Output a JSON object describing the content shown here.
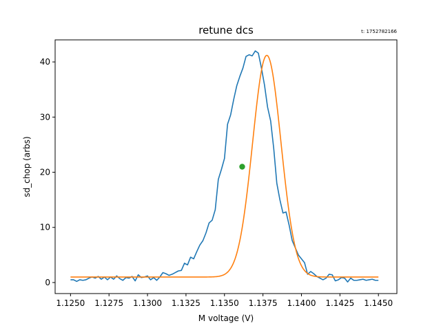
{
  "chart_data": {
    "type": "line",
    "title": "retune dcs",
    "timestamp": "t: 1752782166",
    "xlabel": "M voltage (V)",
    "ylabel": "sd_chop (arbs)",
    "xlim": [
      1.124,
      1.1462
    ],
    "ylim": [
      -2,
      44
    ],
    "xticks": [
      1.125,
      1.1275,
      1.13,
      1.1325,
      1.135,
      1.1375,
      1.14,
      1.1425,
      1.145
    ],
    "xtick_labels": [
      "1.1250",
      "1.1275",
      "1.1300",
      "1.1325",
      "1.1350",
      "1.1375",
      "1.1400",
      "1.1425",
      "1.1450"
    ],
    "yticks": [
      0,
      10,
      20,
      30,
      40
    ],
    "ytick_labels": [
      "0",
      "10",
      "20",
      "30",
      "40"
    ],
    "grid": false,
    "series": [
      {
        "kind": "measured",
        "color": "#1f77b4",
        "x": [
          1.125,
          1.1252,
          1.1254,
          1.1256,
          1.1258,
          1.126,
          1.1262,
          1.1264,
          1.1266,
          1.1268,
          1.127,
          1.1272,
          1.1274,
          1.1276,
          1.1278,
          1.128,
          1.1282,
          1.1284,
          1.1286,
          1.1288,
          1.129,
          1.1292,
          1.1294,
          1.1296,
          1.1298,
          1.13,
          1.1302,
          1.1304,
          1.1306,
          1.1308,
          1.131,
          1.1312,
          1.1314,
          1.1316,
          1.1318,
          1.132,
          1.1322,
          1.1324,
          1.1326,
          1.1328,
          1.133,
          1.1332,
          1.1334,
          1.1336,
          1.1338,
          1.134,
          1.1342,
          1.1344,
          1.1346,
          1.1348,
          1.135,
          1.1352,
          1.1354,
          1.1356,
          1.1358,
          1.136,
          1.1362,
          1.1364,
          1.1366,
          1.1368,
          1.137,
          1.1372,
          1.1374,
          1.1376,
          1.1378,
          1.138,
          1.1382,
          1.1384,
          1.1386,
          1.1388,
          1.139,
          1.1392,
          1.1394,
          1.1396,
          1.1398,
          1.14,
          1.1402,
          1.1404,
          1.1406,
          1.1408,
          1.141,
          1.1412,
          1.1414,
          1.1416,
          1.1418,
          1.142,
          1.1422,
          1.1424,
          1.1426,
          1.1428,
          1.143,
          1.1432,
          1.1434,
          1.1436,
          1.1438,
          1.144,
          1.1442,
          1.1444,
          1.1446,
          1.1448,
          1.145
        ],
        "y": [
          0.5,
          0.5,
          0.2,
          0.5,
          0.4,
          0.5,
          0.8,
          1.0,
          0.8,
          1.1,
          0.6,
          1.0,
          0.5,
          1.0,
          0.6,
          1.2,
          0.7,
          0.4,
          0.9,
          0.8,
          1.1,
          0.3,
          1.4,
          0.9,
          1.0,
          1.2,
          0.5,
          0.9,
          0.4,
          1.0,
          1.8,
          1.6,
          1.3,
          1.5,
          1.8,
          2.1,
          2.2,
          3.5,
          3.2,
          4.6,
          4.3,
          5.6,
          6.8,
          7.6,
          9.0,
          10.8,
          11.3,
          13.2,
          18.7,
          20.5,
          22.5,
          28.7,
          30.4,
          33.2,
          35.7,
          37.4,
          38.9,
          41.0,
          41.3,
          41.1,
          42.0,
          41.6,
          38.9,
          35.8,
          31.8,
          29.3,
          24.3,
          18.0,
          15.0,
          12.6,
          12.8,
          10.4,
          7.6,
          6.3,
          5.0,
          4.3,
          3.6,
          1.5,
          2.0,
          1.6,
          1.1,
          0.8,
          0.5,
          0.8,
          1.5,
          1.4,
          0.3,
          0.5,
          0.9,
          0.8,
          0.1,
          0.8,
          0.4,
          0.4,
          0.5,
          0.6,
          0.4,
          0.5,
          0.6,
          0.4,
          0.4
        ]
      },
      {
        "kind": "fit",
        "color": "#ff7f0e",
        "gaussian": {
          "amplitude": 40.2,
          "center": 1.13775,
          "sigma": 0.000922,
          "offset": 1.0
        },
        "x_range": [
          1.125,
          1.145
        ]
      }
    ],
    "marker": {
      "x": 1.13615,
      "y": 21.0,
      "color": "#2ca02c"
    }
  }
}
